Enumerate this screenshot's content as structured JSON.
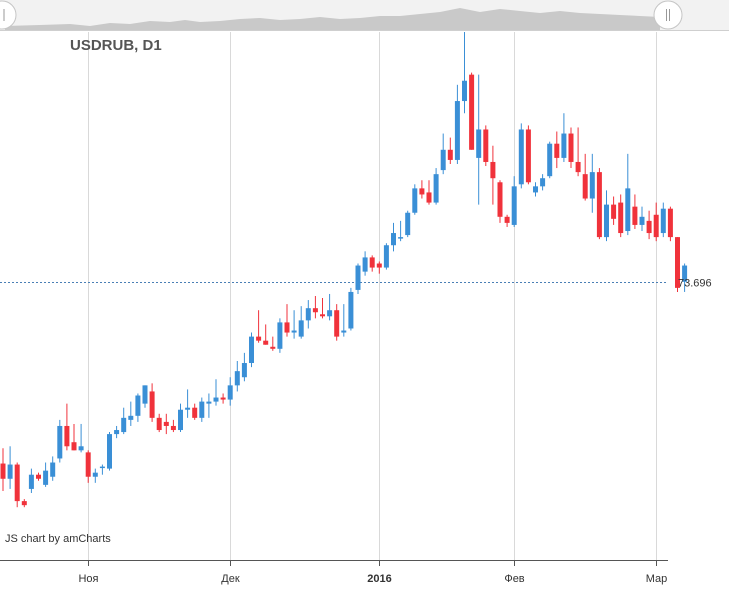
{
  "chart_data": {
    "type": "candlestick",
    "title": "USDRUB, D1",
    "credit": "JS chart by amCharts",
    "current_price": 73.696,
    "current_price_label": "73.696",
    "ylim": [
      60,
      86
    ],
    "grid": "vertical",
    "colors": {
      "up": "#3a8fd6",
      "down": "#f0323b",
      "price_line": "#4a7fb5",
      "grid": "#d9d9d9"
    },
    "x_ticks": [
      {
        "label": "Ноя",
        "index": 12,
        "bold": false
      },
      {
        "label": "Дек",
        "index": 32,
        "bold": false
      },
      {
        "label": "2016",
        "index": 53,
        "bold": true
      },
      {
        "label": "Фев",
        "index": 72,
        "bold": false
      },
      {
        "label": "Мар",
        "index": 92,
        "bold": false
      }
    ],
    "candles": [
      [
        64.75,
        65.5,
        63.4,
        64.0
      ],
      [
        64.0,
        65.6,
        63.5,
        64.7
      ],
      [
        64.7,
        64.8,
        62.6,
        62.9
      ],
      [
        62.9,
        63.0,
        62.6,
        62.7
      ],
      [
        63.5,
        64.5,
        63.3,
        64.2
      ],
      [
        64.2,
        64.3,
        63.9,
        64.0
      ],
      [
        63.7,
        64.8,
        63.6,
        64.4
      ],
      [
        64.1,
        65.1,
        63.9,
        64.8
      ],
      [
        65.0,
        66.9,
        64.8,
        66.6
      ],
      [
        66.6,
        67.7,
        65.4,
        65.6
      ],
      [
        65.8,
        66.7,
        65.4,
        65.4
      ],
      [
        65.4,
        66.7,
        65.3,
        65.6
      ],
      [
        65.3,
        65.4,
        63.8,
        64.1
      ],
      [
        64.1,
        64.5,
        63.8,
        64.3
      ],
      [
        64.6,
        64.7,
        64.2,
        64.6
      ],
      [
        64.5,
        66.3,
        64.4,
        66.2
      ],
      [
        66.2,
        66.6,
        66.0,
        66.4
      ],
      [
        66.3,
        67.5,
        66.2,
        67.0
      ],
      [
        66.9,
        67.8,
        66.6,
        67.1
      ],
      [
        67.1,
        68.2,
        66.8,
        68.1
      ],
      [
        67.7,
        68.6,
        67.5,
        68.6
      ],
      [
        68.3,
        68.7,
        66.8,
        67.0
      ],
      [
        67.0,
        67.2,
        66.3,
        66.4
      ],
      [
        66.8,
        67.2,
        66.2,
        66.6
      ],
      [
        66.6,
        66.9,
        66.3,
        66.4
      ],
      [
        66.4,
        67.7,
        66.3,
        67.4
      ],
      [
        67.4,
        68.4,
        67.0,
        67.5
      ],
      [
        67.5,
        67.7,
        66.9,
        67.0
      ],
      [
        67.0,
        68.0,
        66.8,
        67.8
      ],
      [
        67.7,
        68.2,
        67.0,
        67.8
      ],
      [
        67.8,
        68.9,
        67.6,
        68.0
      ],
      [
        68.0,
        68.2,
        67.7,
        67.9
      ],
      [
        67.9,
        69.0,
        67.6,
        68.6
      ],
      [
        68.6,
        69.8,
        68.3,
        69.3
      ],
      [
        69.0,
        70.2,
        68.8,
        69.7
      ],
      [
        69.7,
        71.2,
        69.5,
        71.0
      ],
      [
        71.0,
        72.3,
        70.7,
        70.8
      ],
      [
        70.8,
        71.6,
        70.6,
        70.6
      ],
      [
        70.5,
        71.0,
        70.3,
        70.4
      ],
      [
        70.4,
        71.9,
        70.2,
        71.7
      ],
      [
        71.7,
        72.6,
        71.0,
        71.2
      ],
      [
        71.2,
        72.3,
        70.9,
        71.3
      ],
      [
        71.0,
        72.5,
        70.9,
        71.8
      ],
      [
        71.8,
        72.8,
        71.4,
        72.4
      ],
      [
        72.4,
        73.0,
        71.9,
        72.2
      ],
      [
        72.1,
        72.9,
        71.9,
        72.0
      ],
      [
        72.0,
        73.1,
        71.8,
        72.3
      ],
      [
        72.3,
        72.6,
        70.8,
        71.0
      ],
      [
        71.2,
        72.6,
        71.0,
        71.3
      ],
      [
        71.4,
        73.4,
        71.3,
        73.2
      ],
      [
        73.3,
        74.6,
        73.1,
        74.5
      ],
      [
        74.2,
        75.2,
        74.0,
        74.9
      ],
      [
        74.9,
        75.0,
        74.2,
        74.4
      ],
      [
        74.6,
        74.7,
        74.1,
        74.4
      ],
      [
        74.4,
        75.6,
        74.3,
        75.5
      ],
      [
        75.5,
        76.6,
        75.2,
        76.1
      ],
      [
        75.9,
        76.7,
        75.7,
        75.9
      ],
      [
        76.0,
        77.2,
        75.9,
        77.1
      ],
      [
        77.1,
        78.5,
        77.0,
        78.3
      ],
      [
        78.3,
        78.7,
        77.8,
        78.0
      ],
      [
        78.1,
        78.7,
        77.5,
        77.6
      ],
      [
        77.6,
        79.3,
        77.5,
        79.0
      ],
      [
        79.2,
        81.0,
        79.0,
        80.2
      ],
      [
        80.2,
        80.8,
        79.5,
        79.7
      ],
      [
        79.7,
        83.4,
        79.5,
        82.6
      ],
      [
        82.6,
        86.0,
        82.0,
        83.6
      ],
      [
        83.9,
        84.0,
        80.2,
        80.2
      ],
      [
        79.8,
        83.9,
        77.5,
        81.2
      ],
      [
        81.2,
        81.4,
        79.4,
        79.6
      ],
      [
        79.6,
        80.4,
        77.5,
        78.8
      ],
      [
        78.6,
        78.7,
        76.6,
        76.9
      ],
      [
        76.9,
        77.0,
        76.4,
        76.6
      ],
      [
        76.5,
        78.9,
        76.4,
        78.4
      ],
      [
        78.5,
        81.5,
        78.3,
        81.2
      ],
      [
        81.2,
        81.4,
        78.5,
        78.6
      ],
      [
        78.1,
        78.6,
        77.9,
        78.4
      ],
      [
        78.4,
        79.0,
        78.2,
        78.8
      ],
      [
        78.9,
        80.6,
        78.8,
        80.5
      ],
      [
        80.5,
        81.1,
        79.3,
        79.8
      ],
      [
        79.8,
        82.0,
        79.6,
        81.0
      ],
      [
        81.0,
        81.3,
        79.3,
        79.6
      ],
      [
        79.6,
        81.3,
        78.9,
        79.1
      ],
      [
        79.0,
        80.0,
        77.7,
        77.8
      ],
      [
        77.8,
        80.0,
        77.1,
        79.1
      ],
      [
        79.1,
        79.3,
        75.8,
        75.9
      ],
      [
        75.9,
        78.2,
        75.7,
        77.5
      ],
      [
        77.5,
        77.9,
        76.5,
        76.8
      ],
      [
        77.6,
        78.0,
        75.9,
        76.1
      ],
      [
        76.2,
        80.0,
        76.0,
        78.3
      ],
      [
        77.4,
        78.0,
        76.3,
        76.5
      ],
      [
        76.5,
        77.4,
        76.2,
        76.9
      ],
      [
        76.7,
        77.2,
        75.8,
        76.1
      ],
      [
        77.0,
        77.6,
        75.7,
        75.9
      ],
      [
        76.1,
        77.6,
        75.9,
        77.3
      ],
      [
        77.3,
        77.4,
        75.7,
        75.9
      ],
      [
        75.9,
        75.9,
        73.2,
        73.4
      ],
      [
        73.7,
        74.6,
        73.2,
        74.5
      ]
    ]
  }
}
